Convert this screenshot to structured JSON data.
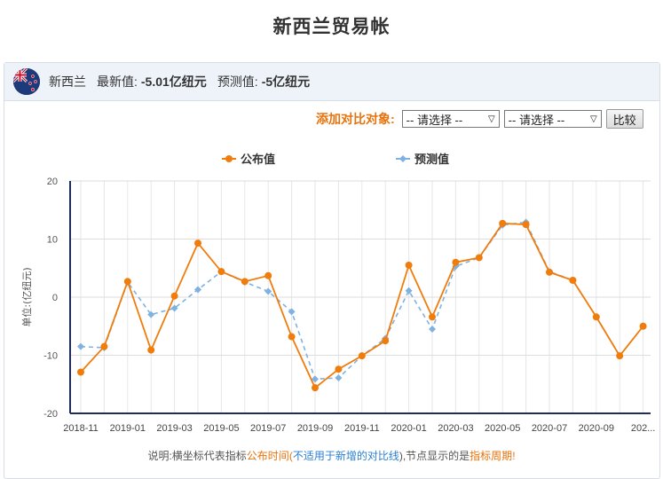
{
  "page": {
    "title": "新西兰贸易帐"
  },
  "header": {
    "country": "新西兰",
    "latest_label": "最新值:",
    "latest_value": "-5.01亿纽元",
    "forecast_label": "预测值:",
    "forecast_value": "-5亿纽元"
  },
  "compare": {
    "label": "添加对比对象:",
    "select1": "-- 请选择 --",
    "select2": "-- 请选择 --",
    "button": "比较"
  },
  "colors": {
    "published": "#f07c0c",
    "forecast": "#7fb2e0",
    "accent": "#e8730c",
    "link": "#2a7fd4"
  },
  "note": {
    "p1": "说明:横坐标代表指标",
    "p2": "公布时间",
    "p3": "(",
    "p4": "不适用于新增的对比线",
    "p5": "),节点显示的是",
    "p6": "指标周期",
    "p7": "!"
  },
  "chart_data": {
    "type": "line",
    "ylabel": "单位:(亿纽元)",
    "ylim": [
      -20,
      20
    ],
    "yticks": [
      -20,
      -10,
      0,
      10,
      20
    ],
    "grid": true,
    "legend_position": "top-center",
    "tick_labels": [
      "2018-11",
      "2019-01",
      "2019-03",
      "2019-05",
      "2019-07",
      "2019-09",
      "2019-11",
      "2020-01",
      "2020-03",
      "2020-05",
      "2020-07",
      "2020-09",
      "202..."
    ],
    "series": [
      {
        "name": "公布值",
        "style": "solid",
        "values": [
          -12.9,
          -8.5,
          2.7,
          -9.1,
          0.2,
          9.3,
          4.4,
          2.7,
          3.7,
          -6.8,
          -15.6,
          -12.4,
          -10.1,
          -7.5,
          5.5,
          -3.4,
          6.0,
          6.8,
          12.7,
          12.5,
          4.3,
          2.9,
          -3.4,
          -10.1,
          -5.0
        ]
      },
      {
        "name": "预测值",
        "style": "dashed",
        "values": [
          -8.5,
          -8.7,
          2.6,
          -3.0,
          -1.9,
          1.3,
          4.4,
          2.6,
          1.0,
          -2.5,
          -14.1,
          -13.9,
          -10.1,
          -7.1,
          1.1,
          -5.5,
          5.3,
          6.8,
          12.4,
          12.9,
          4.4,
          2.9,
          -3.4,
          -10.1,
          -5.0
        ]
      }
    ]
  }
}
